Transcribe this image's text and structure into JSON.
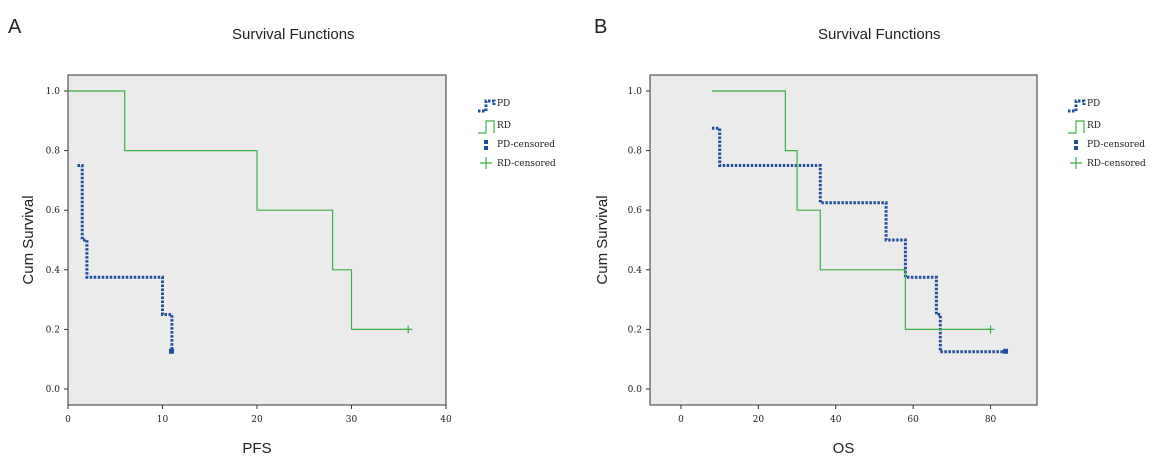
{
  "chart_data": [
    {
      "panel": "A",
      "type": "line",
      "title": "Survival Functions",
      "xlabel": "PFS",
      "ylabel": "Cum Survival",
      "xlim": [
        0,
        40
      ],
      "ylim": [
        0,
        1
      ],
      "xticks": [
        "0",
        "10",
        "20",
        "30",
        "40"
      ],
      "yticks": [
        "0.0",
        "0.2",
        "0.4",
        "0.6",
        "0.8",
        "1.0"
      ],
      "grid": false,
      "legend_position": "right",
      "legend": [
        "PD",
        "RD",
        "PD-censored",
        "RD-censored"
      ],
      "series": [
        {
          "name": "PD",
          "color": "#1f4e9c",
          "style": "dotted",
          "x": [
            1,
            1.5,
            2,
            10,
            11
          ],
          "y": [
            0.75,
            0.5,
            0.375,
            0.25,
            0.125
          ],
          "censored": [
            {
              "x": 11,
              "y": 0.125
            }
          ]
        },
        {
          "name": "RD",
          "color": "#3cb043",
          "style": "solid",
          "x": [
            0,
            6,
            20,
            28,
            30,
            36
          ],
          "y": [
            1.0,
            0.8,
            0.6,
            0.4,
            0.2,
            0.2
          ],
          "censored": [
            {
              "x": 36,
              "y": 0.2
            }
          ]
        }
      ]
    },
    {
      "panel": "B",
      "type": "line",
      "title": "Survival Functions",
      "xlabel": "OS",
      "ylabel": "Cum Survival",
      "xlim": [
        -8,
        92
      ],
      "ylim": [
        0,
        1
      ],
      "xticks": [
        "0",
        "20",
        "40",
        "60",
        "80"
      ],
      "yticks": [
        "0.0",
        "0.2",
        "0.4",
        "0.6",
        "0.8",
        "1.0"
      ],
      "grid": false,
      "legend_position": "right",
      "legend": [
        "PD",
        "RD",
        "PD-censored",
        "RD-censored"
      ],
      "series": [
        {
          "name": "PD",
          "color": "#1f4e9c",
          "style": "dotted",
          "x": [
            8,
            10,
            36,
            53,
            58,
            66,
            67,
            84
          ],
          "y": [
            0.875,
            0.75,
            0.625,
            0.5,
            0.375,
            0.25,
            0.125,
            0.125
          ],
          "censored": [
            {
              "x": 84,
              "y": 0.125
            }
          ]
        },
        {
          "name": "RD",
          "color": "#3cb043",
          "style": "solid",
          "x": [
            8,
            27,
            30,
            36,
            58,
            80
          ],
          "y": [
            1.0,
            0.8,
            0.6,
            0.4,
            0.2,
            0.2
          ],
          "censored": [
            {
              "x": 80,
              "y": 0.2
            }
          ]
        }
      ]
    }
  ],
  "panels": [
    {
      "letter": "A"
    },
    {
      "letter": "B"
    }
  ]
}
